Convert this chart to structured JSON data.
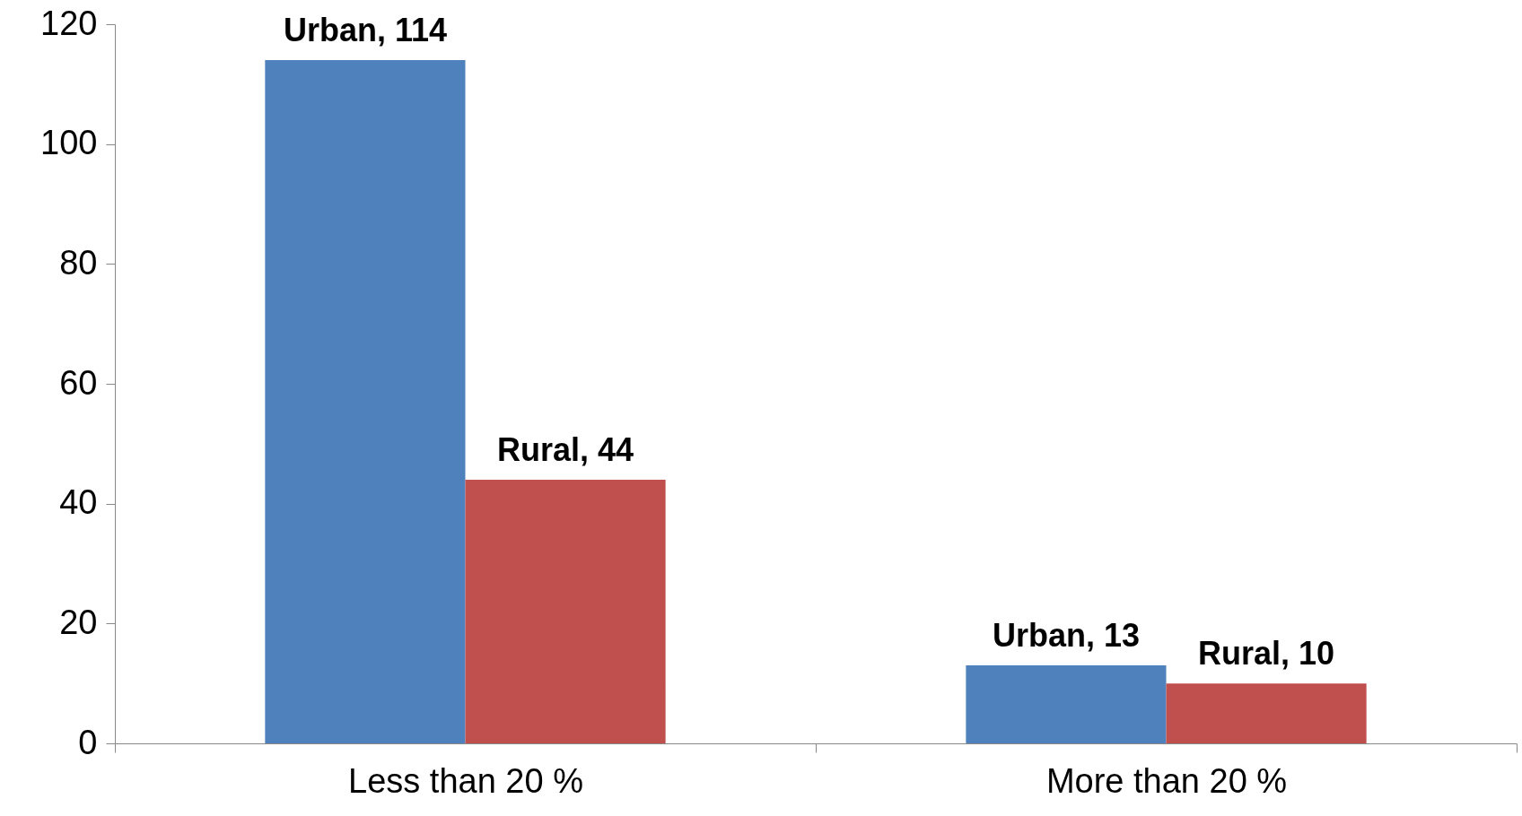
{
  "chart_data": {
    "type": "bar",
    "categories": [
      "Less than 20 %",
      "More than 20 %"
    ],
    "series": [
      {
        "color": "#4f81bd",
        "values": [
          114,
          13
        ],
        "value_labels": [
          "Urban, 114",
          "Urban, 13"
        ]
      },
      {
        "color": "#c0504d",
        "values": [
          44,
          10
        ],
        "value_labels": [
          "Rural, 44",
          "Rural, 10"
        ]
      }
    ],
    "ylim": [
      0,
      120
    ],
    "yticks": [
      0,
      20,
      40,
      60,
      80,
      100,
      120
    ],
    "grid": false,
    "legend": false
  }
}
